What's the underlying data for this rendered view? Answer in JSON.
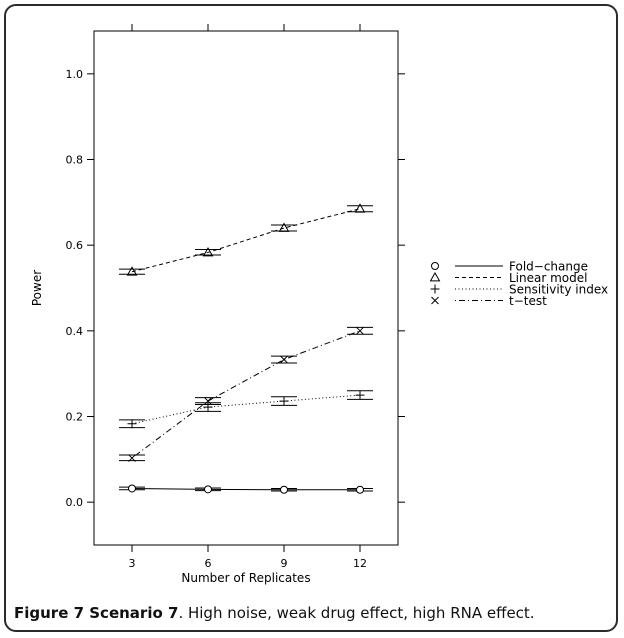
{
  "chart_data": {
    "type": "line",
    "xlabel": "Number of Replicates",
    "ylabel": "Power",
    "x": [
      3,
      6,
      9,
      12
    ],
    "xticks": [
      "3",
      "6",
      "9",
      "12"
    ],
    "yticks": [
      "0.0",
      "0.2",
      "0.4",
      "0.6",
      "0.8",
      "1.0"
    ],
    "xlim": [
      1.5,
      13.5
    ],
    "ylim": [
      -0.1,
      1.1
    ],
    "legend_position": "right",
    "series": [
      {
        "name": "Fold−change",
        "marker": "circle",
        "linestyle": "solid",
        "values": [
          0.032,
          0.03,
          0.029,
          0.029
        ],
        "ci_low": [
          0.029,
          0.027,
          0.026,
          0.026
        ],
        "ci_high": [
          0.035,
          0.033,
          0.032,
          0.032
        ]
      },
      {
        "name": "Linear model",
        "marker": "triangle",
        "linestyle": "dashed",
        "values": [
          0.538,
          0.583,
          0.64,
          0.685
        ],
        "ci_low": [
          0.532,
          0.577,
          0.633,
          0.678
        ],
        "ci_high": [
          0.544,
          0.59,
          0.647,
          0.692
        ]
      },
      {
        "name": "Sensitivity index",
        "marker": "plus",
        "linestyle": "dotted",
        "values": [
          0.183,
          0.222,
          0.236,
          0.25
        ],
        "ci_low": [
          0.174,
          0.212,
          0.226,
          0.24
        ],
        "ci_high": [
          0.192,
          0.232,
          0.246,
          0.26
        ]
      },
      {
        "name": "t−test",
        "marker": "cross",
        "linestyle": "dotdash",
        "values": [
          0.103,
          0.236,
          0.333,
          0.4
        ],
        "ci_low": [
          0.097,
          0.228,
          0.325,
          0.392
        ],
        "ci_high": [
          0.11,
          0.244,
          0.341,
          0.408
        ]
      }
    ]
  },
  "caption": {
    "label": "Figure 7 Scenario 7",
    "text": ". High noise, weak drug effect, high RNA effect."
  }
}
